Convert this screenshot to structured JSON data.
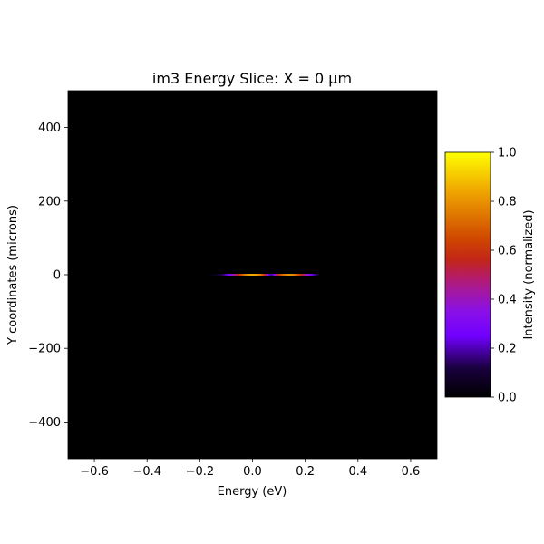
{
  "chart_data": {
    "type": "heatmap",
    "title": "im3 Energy Slice: X = 0 µm",
    "xlabel": "Energy (eV)",
    "ylabel": "Y coordinates (microns)",
    "xlim": [
      -0.7,
      0.7
    ],
    "ylim": [
      -500,
      500
    ],
    "x_ticks": [
      -0.6,
      -0.4,
      -0.2,
      0.0,
      0.2,
      0.4,
      0.6
    ],
    "x_tick_labels": [
      "−0.6",
      "−0.4",
      "−0.2",
      "0.0",
      "0.2",
      "0.4",
      "0.6"
    ],
    "y_ticks": [
      -400,
      -200,
      0,
      200,
      400
    ],
    "y_tick_labels": [
      "−400",
      "−200",
      "0",
      "200",
      "400"
    ],
    "background_value": 0,
    "emission": {
      "y_center": 0,
      "y_halfwidth": 2,
      "x_range": [
        -0.17,
        0.25
      ],
      "lobes": [
        {
          "x_center": 0.0,
          "peak": 0.85,
          "sigma": 0.06
        },
        {
          "x_center": 0.14,
          "peak": 0.8,
          "sigma": 0.055
        }
      ],
      "dip_x": 0.07
    },
    "colormap": "gnuplot",
    "colorbar": {
      "label": "Intensity (normalized)",
      "range": [
        0.0,
        1.0
      ],
      "ticks": [
        0.0,
        0.2,
        0.4,
        0.6,
        0.8,
        1.0
      ],
      "tick_labels": [
        "0.0",
        "0.2",
        "0.4",
        "0.6",
        "0.8",
        "1.0"
      ]
    }
  }
}
